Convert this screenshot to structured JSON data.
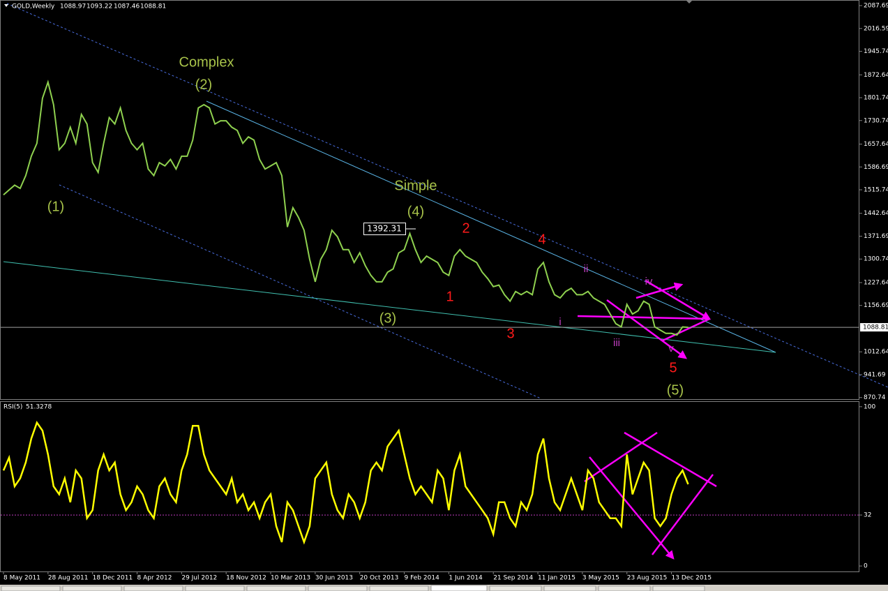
{
  "chart_data": [
    {
      "type": "line",
      "title": "GOLD,Weekly",
      "ohlc": [
        1088.97,
        1093.22,
        1087.46,
        1088.81
      ],
      "color": "#8fd14f",
      "values": [
        1500,
        1515,
        1530,
        1520,
        1560,
        1620,
        1660,
        1800,
        1850,
        1780,
        1640,
        1660,
        1710,
        1660,
        1750,
        1720,
        1600,
        1570,
        1660,
        1740,
        1720,
        1770,
        1700,
        1660,
        1640,
        1660,
        1580,
        1560,
        1600,
        1590,
        1610,
        1580,
        1620,
        1620,
        1670,
        1770,
        1780,
        1770,
        1720,
        1730,
        1730,
        1710,
        1700,
        1660,
        1680,
        1670,
        1610,
        1580,
        1590,
        1600,
        1560,
        1400,
        1460,
        1430,
        1390,
        1300,
        1230,
        1300,
        1330,
        1390,
        1370,
        1330,
        1330,
        1290,
        1320,
        1280,
        1250,
        1230,
        1230,
        1260,
        1270,
        1320,
        1330,
        1380,
        1330,
        1290,
        1310,
        1300,
        1290,
        1260,
        1250,
        1310,
        1330,
        1310,
        1300,
        1290,
        1260,
        1240,
        1215,
        1220,
        1190,
        1170,
        1200,
        1190,
        1200,
        1190,
        1270,
        1290,
        1230,
        1190,
        1180,
        1200,
        1210,
        1190,
        1190,
        1200,
        1180,
        1170,
        1160,
        1130,
        1100,
        1090,
        1160,
        1130,
        1140,
        1170,
        1160,
        1090,
        1080,
        1070,
        1070,
        1065,
        1090,
        1088.81
      ],
      "ylim": [
        868,
        2105
      ],
      "yticks": [
        2087.69,
        2016.59,
        1945.74,
        1872.64,
        1801.74,
        1730.74,
        1657.64,
        1586.69,
        1515.74,
        1442.64,
        1371.69,
        1300.74,
        1227.64,
        1156.69,
        1012.64,
        941.69,
        870.74
      ],
      "last_price": 1088.81,
      "price_label": 1392.31,
      "annotations": [
        {
          "text": "Complex",
          "color": "green"
        },
        {
          "text": "(2)",
          "color": "green"
        },
        {
          "text": "(1)",
          "color": "green"
        },
        {
          "text": "Simple",
          "color": "green"
        },
        {
          "text": "(4)",
          "color": "green"
        },
        {
          "text": "(3)",
          "color": "green"
        },
        {
          "text": "(5)",
          "color": "green"
        },
        {
          "text": "2",
          "color": "red"
        },
        {
          "text": "4",
          "color": "red"
        },
        {
          "text": "1",
          "color": "red"
        },
        {
          "text": "3",
          "color": "red"
        },
        {
          "text": "5",
          "color": "red"
        },
        {
          "text": "ii",
          "color": "magenta"
        },
        {
          "text": "iv",
          "color": "magenta"
        },
        {
          "text": "i",
          "color": "magenta"
        },
        {
          "text": "iii",
          "color": "magenta"
        },
        {
          "text": "v",
          "color": "magenta"
        }
      ]
    },
    {
      "type": "line",
      "title": "RSI(5)",
      "last_value": 51.3278,
      "color": "#ffff00",
      "values": [
        60,
        68,
        50,
        55,
        65,
        80,
        90,
        85,
        70,
        50,
        45,
        55,
        40,
        60,
        55,
        30,
        35,
        60,
        70,
        60,
        65,
        45,
        35,
        40,
        50,
        45,
        35,
        30,
        50,
        55,
        45,
        40,
        60,
        70,
        88,
        88,
        70,
        60,
        55,
        50,
        45,
        55,
        40,
        45,
        35,
        40,
        30,
        40,
        45,
        25,
        15,
        40,
        35,
        25,
        15,
        25,
        55,
        60,
        65,
        45,
        35,
        30,
        45,
        40,
        30,
        40,
        60,
        65,
        60,
        75,
        80,
        85,
        70,
        55,
        45,
        50,
        45,
        40,
        60,
        55,
        35,
        60,
        70,
        50,
        45,
        40,
        35,
        30,
        20,
        40,
        40,
        30,
        25,
        40,
        35,
        45,
        70,
        80,
        55,
        40,
        35,
        45,
        55,
        45,
        35,
        60,
        55,
        40,
        35,
        30,
        30,
        25,
        70,
        45,
        55,
        65,
        60,
        30,
        25,
        30,
        45,
        55,
        60,
        51.3278
      ],
      "ylim": [
        -3,
        103
      ],
      "yticks": [
        100,
        32,
        0
      ],
      "level": 32,
      "xlim": [
        0,
        123
      ],
      "xticks": [
        {
          "value": 0,
          "label": "8 May 2011"
        },
        {
          "value": 8,
          "label": "28 Aug 2011"
        },
        {
          "value": 16,
          "label": "18 Dec 2011"
        },
        {
          "value": 24,
          "label": "8 Apr 2012"
        },
        {
          "value": 32,
          "label": "29 Jul 2012"
        },
        {
          "value": 40,
          "label": "18 Nov 2012"
        },
        {
          "value": 48,
          "label": "10 Mar 2013"
        },
        {
          "value": 56,
          "label": "30 Jun 2013"
        },
        {
          "value": 64,
          "label": "20 Oct 2013"
        },
        {
          "value": 72,
          "label": "9 Feb 2014"
        },
        {
          "value": 80,
          "label": "1 Jun 2014"
        },
        {
          "value": 88,
          "label": "21 Sep 2014"
        },
        {
          "value": 96,
          "label": "11 Jan 2015"
        },
        {
          "value": 104,
          "label": "3 May 2015"
        },
        {
          "value": 112,
          "label": "23 Aug 2015"
        },
        {
          "value": 120,
          "label": "13 Dec 2015"
        }
      ]
    }
  ]
}
